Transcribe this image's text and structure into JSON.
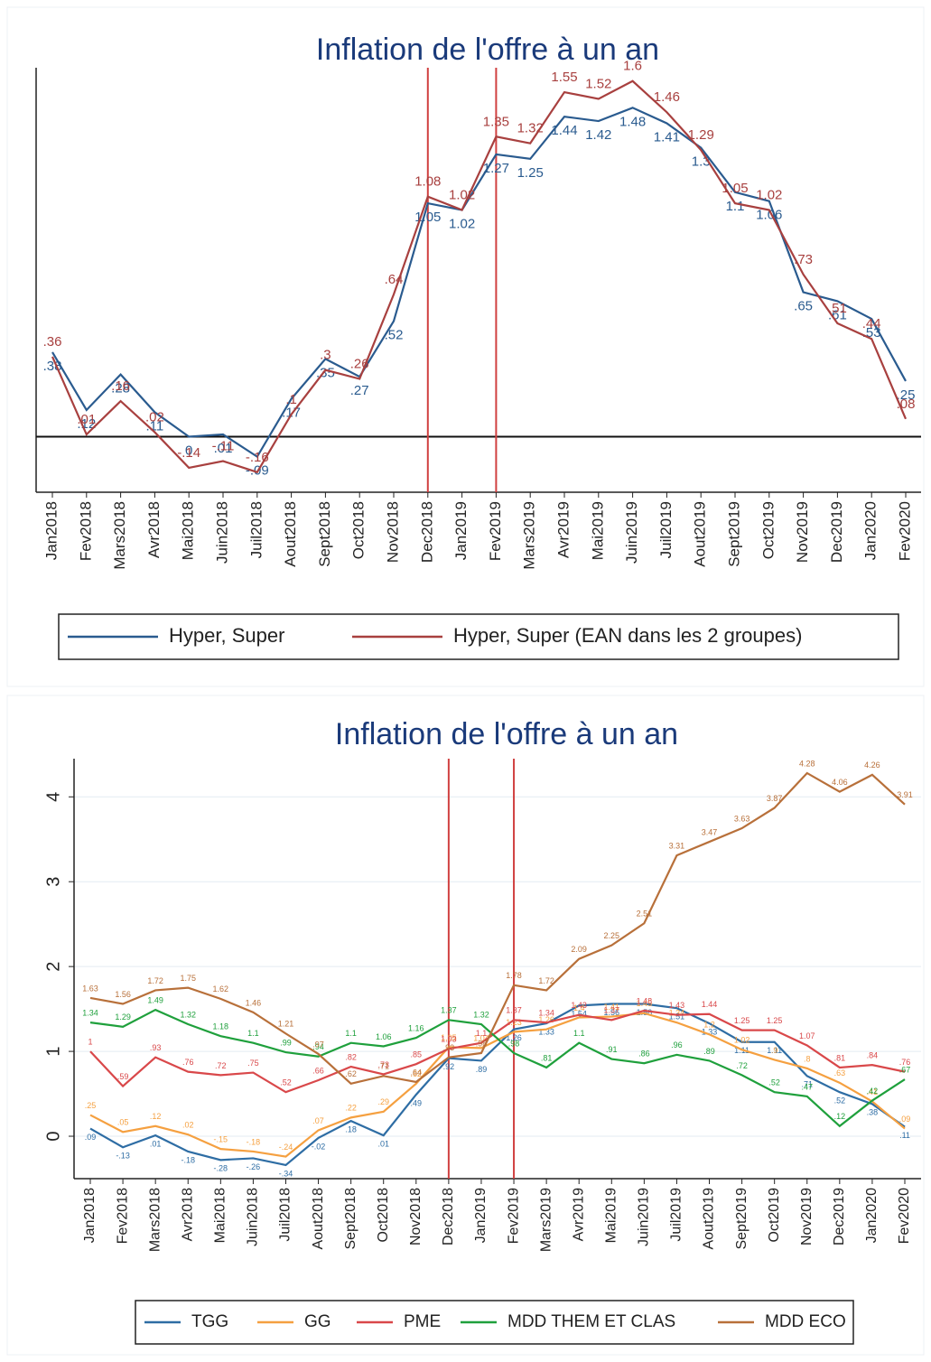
{
  "chart_data": [
    {
      "type": "line",
      "title": "Inflation de l'offre à un an",
      "categories": [
        "Jan2018",
        "Fev2018",
        "Mars2018",
        "Avr2018",
        "Mai2018",
        "Juin2018",
        "Juil2018",
        "Aout2018",
        "Sept2018",
        "Oct2018",
        "Nov2018",
        "Dec2018",
        "Jan2019",
        "Fev2019",
        "Mars2019",
        "Avr2019",
        "Mai2019",
        "Juin2019",
        "Juil2019",
        "Aout2019",
        "Sept2019",
        "Oct2019",
        "Nov2019",
        "Dec2019",
        "Jan2020",
        "Fev2020"
      ],
      "series": [
        {
          "name": "Hyper, Super",
          "color": "#2a5b8f",
          "values": [
            0.38,
            0.12,
            0.28,
            0.11,
            0,
            0.01,
            -0.09,
            0.17,
            0.35,
            0.27,
            0.52,
            1.05,
            1.02,
            1.27,
            1.25,
            1.44,
            1.42,
            1.48,
            1.41,
            1.3,
            1.1,
            1.06,
            0.65,
            0.61,
            0.53,
            0.25
          ],
          "value_labels": [
            ".38",
            ".12",
            ".28",
            ".11",
            "0",
            ".01",
            "-.09",
            ".17",
            ".35",
            ".27",
            ".52",
            "1.05",
            "1.02",
            "1.27",
            "1.25",
            "1.44",
            "1.42",
            "1.48",
            "1.41",
            "1.3",
            "1.1",
            "1.06",
            ".65",
            ".61",
            ".53",
            ".25"
          ]
        },
        {
          "name": "Hyper, Super (EAN dans les 2 groupes)",
          "color": "#a8403f",
          "values": [
            0.36,
            0.01,
            0.16,
            0.02,
            -0.14,
            -0.11,
            -0.16,
            0.1,
            0.3,
            0.26,
            0.64,
            1.08,
            1.02,
            1.35,
            1.32,
            1.55,
            1.52,
            1.6,
            1.46,
            1.29,
            1.05,
            1.02,
            0.73,
            0.51,
            0.44,
            0.08
          ],
          "value_labels": [
            ".36",
            ".01",
            ".16",
            ".02",
            "-.14",
            "-.11",
            "-.16",
            ".1",
            ".3",
            ".26",
            ".64",
            "1.08",
            "1.02",
            "1.35",
            "1.32",
            "1.55",
            "1.52",
            "1.6",
            "1.46",
            "1.29",
            "1.05",
            "1.02",
            ".73",
            ".51",
            ".44",
            ".08"
          ]
        }
      ],
      "ylim": [
        -0.25,
        1.66
      ],
      "grid": false,
      "legend": "bottom",
      "reference_x": [
        "Dec2018",
        "Fev2019"
      ],
      "reference_color": "#d04040",
      "reference_y": 0
    },
    {
      "type": "line",
      "title": "Inflation de l'offre à un an",
      "categories": [
        "Jan2018",
        "Fev2018",
        "Mars2018",
        "Avr2018",
        "Mai2018",
        "Juin2018",
        "Juil2018",
        "Aout2018",
        "Sept2018",
        "Oct2018",
        "Nov2018",
        "Dec2018",
        "Jan2019",
        "Fev2019",
        "Mars2019",
        "Avr2019",
        "Mai2019",
        "Juin2019",
        "Juil2019",
        "Aout2019",
        "Sept2019",
        "Oct2019",
        "Nov2019",
        "Dec2019",
        "Jan2020",
        "Fev2020"
      ],
      "series": [
        {
          "name": "TGG",
          "color": "#2e6da4",
          "values": [
            0.09,
            -0.13,
            0.01,
            -0.18,
            -0.28,
            -0.26,
            -0.34,
            -0.02,
            0.18,
            0.01,
            0.49,
            0.92,
            0.89,
            1.26,
            1.33,
            1.54,
            1.56,
            1.56,
            1.51,
            1.33,
            1.11,
            1.11,
            0.71,
            0.52,
            0.38,
            0.11
          ],
          "value_labels": [
            ".09",
            "-.13",
            ".01",
            "-.18",
            "-.28",
            "-.26",
            "-.34",
            "-.02",
            ".18",
            ".01",
            ".49",
            ".92",
            ".89",
            "1.26",
            "1.33",
            "1.54",
            "1.56",
            "1.56",
            "1.51",
            "1.33",
            "1.11",
            "1.11",
            ".71",
            ".52",
            ".38",
            ".11"
          ]
        },
        {
          "name": "GG",
          "color": "#f5a040",
          "values": [
            0.25,
            0.05,
            0.12,
            0.02,
            -0.15,
            -0.18,
            -0.24,
            0.07,
            0.22,
            0.29,
            0.62,
            1.05,
            1.04,
            1.23,
            1.26,
            1.4,
            1.41,
            1.45,
            1.34,
            1.2,
            1.02,
            0.9,
            0.8,
            0.63,
            0.41,
            0.09
          ],
          "value_labels": [
            ".25",
            ".05",
            ".12",
            ".02",
            "-.15",
            "-.18",
            "-.24",
            ".07",
            ".22",
            ".29",
            ".62",
            "1.05",
            "1.04",
            "1.23",
            "1.26",
            "1.4",
            "1.41",
            "1.45",
            "1.34",
            "1.2",
            "1.02",
            ".9",
            ".8",
            ".63",
            ".41",
            ".09"
          ]
        },
        {
          "name": "PME",
          "color": "#d9484a",
          "values": [
            1,
            0.59,
            0.93,
            0.76,
            0.72,
            0.75,
            0.52,
            0.66,
            0.82,
            0.73,
            0.85,
            1.03,
            1.1,
            1.37,
            1.34,
            1.43,
            1.37,
            1.48,
            1.43,
            1.44,
            1.25,
            1.25,
            1.07,
            0.81,
            0.84,
            0.76
          ],
          "value_labels": [
            "1",
            ".59",
            ".93",
            ".76",
            ".72",
            ".75",
            ".52",
            ".66",
            ".82",
            ".73",
            ".85",
            "1.03",
            "1.1",
            "1.37",
            "1.34",
            "1.43",
            "1.37",
            "1.48",
            "1.43",
            "1.44",
            "1.25",
            "1.25",
            "1.07",
            ".81",
            ".84",
            ".76"
          ]
        },
        {
          "name": "MDD THEM ET CLAS",
          "color": "#1fa03c",
          "values": [
            1.34,
            1.29,
            1.49,
            1.32,
            1.18,
            1.1,
            0.99,
            0.94,
            1.1,
            1.06,
            1.16,
            1.37,
            1.32,
            0.98,
            0.81,
            1.1,
            0.91,
            0.86,
            0.96,
            0.89,
            0.72,
            0.52,
            0.47,
            0.12,
            0.42,
            0.67
          ],
          "value_labels": [
            "1.34",
            "1.29",
            "1.49",
            "1.32",
            "1.18",
            "1.1",
            ".99",
            ".94",
            "1.1",
            "1.06",
            "1.16",
            "1.37",
            "1.32",
            ".98",
            ".81",
            "1.1",
            ".91",
            ".86",
            ".96",
            ".89",
            ".72",
            ".52",
            ".47",
            ".12",
            ".42",
            ".67"
          ]
        },
        {
          "name": "MDD ECO",
          "color": "#b8703a",
          "values": [
            1.63,
            1.56,
            1.72,
            1.75,
            1.62,
            1.46,
            1.21,
            0.97,
            0.62,
            0.71,
            0.64,
            0.93,
            0.98,
            1.78,
            1.72,
            2.09,
            2.25,
            2.51,
            3.31,
            3.47,
            3.63,
            3.87,
            4.28,
            4.06,
            4.26,
            3.91
          ],
          "value_labels": [
            "1.63",
            "1.56",
            "1.72",
            "1.75",
            "1.62",
            "1.46",
            "1.21",
            ".97",
            ".62",
            ".71",
            ".64",
            ".93",
            ".98",
            "1.78",
            "1.72",
            "2.09",
            "2.25",
            "2.51",
            "3.31",
            "3.47",
            "3.63",
            "3.87",
            "4.28",
            "4.06",
            "4.26",
            "3.91"
          ]
        }
      ],
      "ylim": [
        -0.5,
        4.45
      ],
      "yticks": [
        0,
        1,
        2,
        3,
        4
      ],
      "grid": true,
      "legend": "bottom",
      "reference_x": [
        "Dec2018",
        "Fev2019"
      ],
      "reference_color": "#d04040"
    }
  ]
}
